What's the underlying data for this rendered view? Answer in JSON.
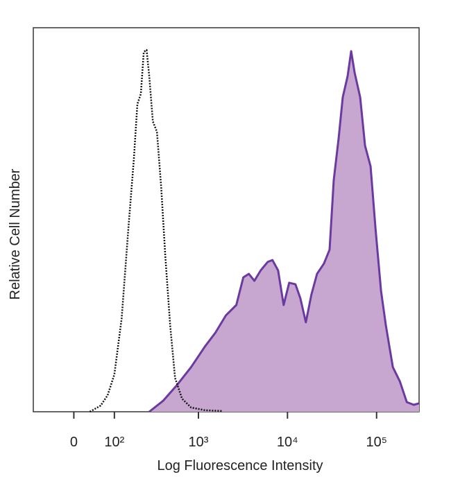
{
  "chart_data": {
    "type": "histogram-overlay",
    "xlabel": "Log Fluorescence Intensity",
    "ylabel": "Relative Cell Number",
    "xscale": "biexponential",
    "xlim": [
      -100,
      300000
    ],
    "ylim": [
      0,
      100
    ],
    "xticks": [
      0,
      {
        "value": 100,
        "label": "10²"
      },
      {
        "value": 1000,
        "label": "10³"
      },
      {
        "value": 10000,
        "label": "10⁴"
      },
      {
        "value": 100000,
        "label": "10⁵"
      }
    ],
    "series": [
      {
        "color": "#6a3aa0",
        "fill": "#c7a6cf",
        "style": "solid",
        "x": [
          275,
          400,
          575,
          826,
          1183,
          1553,
          2035,
          2665,
          3195,
          3683,
          4250,
          5000,
          5990,
          6790,
          7845,
          9060,
          10460,
          12280,
          13930,
          16080,
          18570,
          21450,
          25690,
          29660,
          33030,
          37500,
          41750,
          47350,
          51800,
          56680,
          65440,
          74240,
          85700,
          97240,
          112300,
          127400,
          152400,
          182500,
          218500,
          261600,
          300000
        ],
        "values": [
          0,
          2.9,
          7.0,
          11.6,
          17.0,
          20.6,
          25.1,
          27.8,
          35.0,
          35.9,
          34.1,
          36.8,
          39.0,
          39.5,
          36.8,
          27.8,
          33.6,
          33.2,
          29.6,
          23.3,
          30.5,
          35.9,
          38.6,
          42.2,
          60.3,
          71.1,
          81.9,
          87.4,
          93.9,
          88.3,
          81.9,
          69.3,
          63.9,
          47.7,
          31.4,
          22.4,
          11.6,
          7.9,
          2.5,
          1.8,
          2.2
        ]
      },
      {
        "color": "#111111",
        "fill": "none",
        "style": "dotted",
        "x": [
          34,
          60,
          79,
          100,
          126,
          154,
          180,
          199,
          219,
          237,
          256,
          275,
          303,
          338,
          378,
          422,
          479,
          544,
          653,
          826,
          1183,
          1858
        ],
        "values": [
          0,
          1.6,
          4.3,
          9.7,
          24.2,
          47.7,
          65.7,
          80.1,
          82.8,
          93.7,
          94.2,
          87.4,
          75.6,
          72.9,
          58.5,
          40.4,
          22.4,
          8.8,
          3.4,
          1.1,
          0.4,
          0.2
        ]
      }
    ]
  }
}
